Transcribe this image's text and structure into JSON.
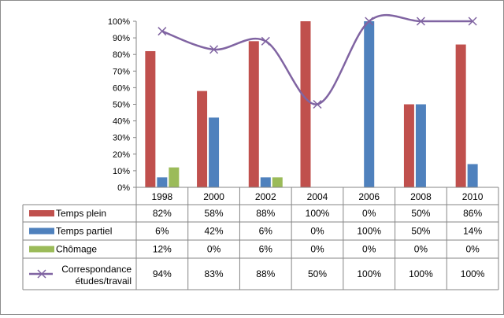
{
  "chart_data": {
    "type": "bar",
    "categories": [
      "1998",
      "2000",
      "2002",
      "2004",
      "2006",
      "2008",
      "2010"
    ],
    "series": [
      {
        "name": "Temps plein",
        "type": "bar",
        "color": "#c0504d",
        "values": [
          82,
          58,
          88,
          100,
          0,
          50,
          86
        ]
      },
      {
        "name": "Temps partiel",
        "type": "bar",
        "color": "#4f81bd",
        "values": [
          6,
          42,
          6,
          0,
          100,
          50,
          14
        ]
      },
      {
        "name": "Chômage",
        "type": "bar",
        "color": "#9bbb59",
        "values": [
          12,
          0,
          6,
          0,
          0,
          0,
          0
        ]
      },
      {
        "name": "Correspondance études/travail",
        "name_lines": [
          "Correspondance",
          "études/travail"
        ],
        "type": "line",
        "marker": "x",
        "smooth": true,
        "color": "#8064a2",
        "values": [
          94,
          83,
          88,
          50,
          100,
          100,
          100
        ]
      }
    ],
    "yticks": [
      "0%",
      "10%",
      "20%",
      "30%",
      "40%",
      "50%",
      "60%",
      "70%",
      "80%",
      "90%",
      "100%"
    ],
    "ylim": [
      0,
      100
    ],
    "unit": "%",
    "data_table": true,
    "title": "",
    "xlabel": "",
    "ylabel": ""
  }
}
